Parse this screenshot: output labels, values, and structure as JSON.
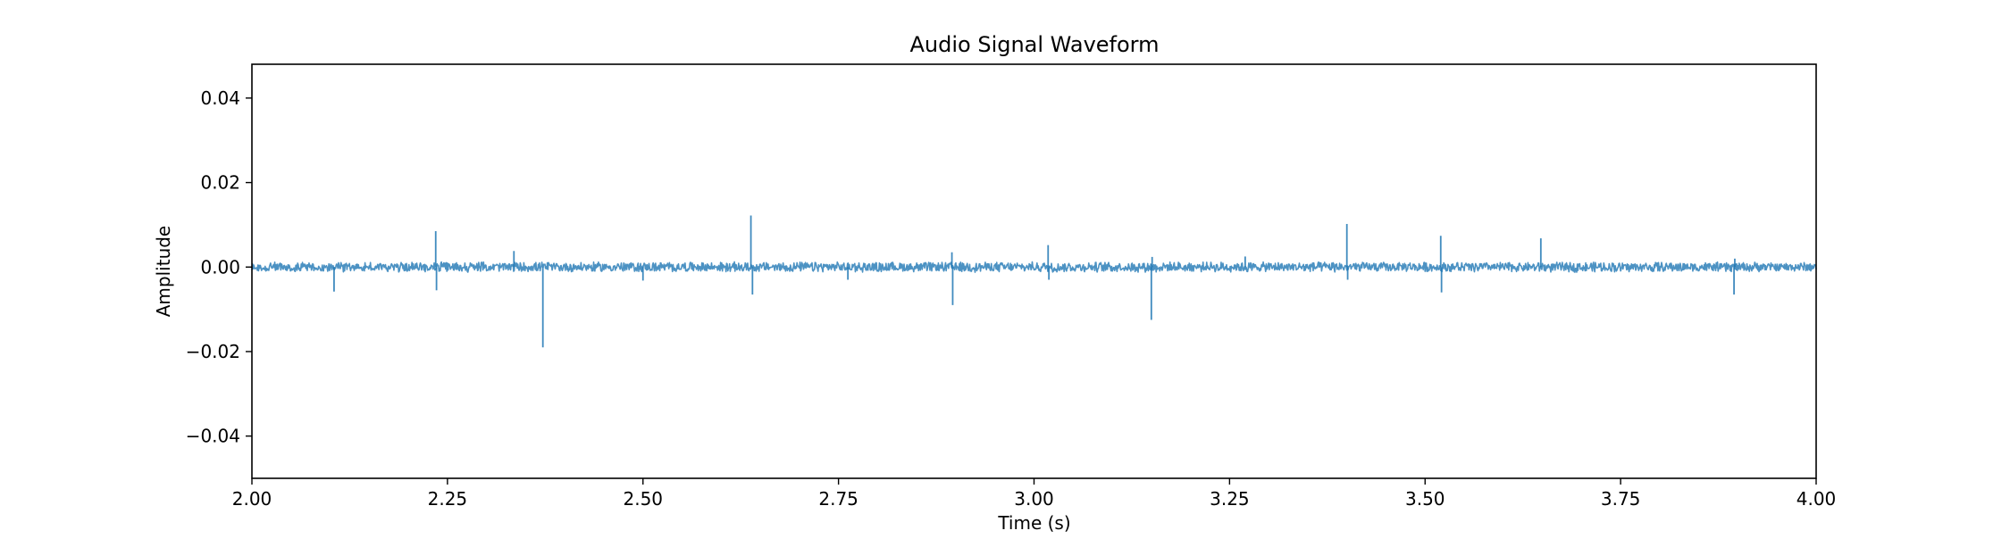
{
  "chart_data": {
    "type": "line",
    "title": "Audio Signal Waveform",
    "xlabel": "Time (s)",
    "ylabel": "Amplitude",
    "xlim": [
      2.0,
      4.0
    ],
    "ylim": [
      -0.05,
      0.048
    ],
    "x_ticks": [
      2.0,
      2.25,
      2.5,
      2.75,
      3.0,
      3.25,
      3.5,
      3.75,
      4.0
    ],
    "x_tick_labels": [
      "2.00",
      "2.25",
      "2.50",
      "2.75",
      "3.00",
      "3.25",
      "3.50",
      "3.75",
      "4.00"
    ],
    "y_ticks": [
      -0.04,
      -0.02,
      0.0,
      0.02,
      0.04
    ],
    "y_tick_labels": [
      "−0.04",
      "−0.02",
      "0.00",
      "0.02",
      "0.04"
    ],
    "grid": false,
    "legend": false,
    "line_color": "#1f77b4",
    "series": [
      {
        "baseline_noise_amplitude": 0.001,
        "spikes": [
          {
            "t": 2.105,
            "v": -0.0058
          },
          {
            "t": 2.235,
            "v": 0.0085
          },
          {
            "t": 2.236,
            "v": -0.0055
          },
          {
            "t": 2.335,
            "v": 0.0038
          },
          {
            "t": 2.372,
            "v": -0.019
          },
          {
            "t": 2.5,
            "v": -0.0032
          },
          {
            "t": 2.638,
            "v": 0.0122
          },
          {
            "t": 2.64,
            "v": -0.0065
          },
          {
            "t": 2.762,
            "v": -0.003
          },
          {
            "t": 2.895,
            "v": 0.0035
          },
          {
            "t": 2.896,
            "v": -0.009
          },
          {
            "t": 3.018,
            "v": 0.0052
          },
          {
            "t": 3.019,
            "v": -0.003
          },
          {
            "t": 3.15,
            "v": -0.0125
          },
          {
            "t": 3.151,
            "v": 0.0024
          },
          {
            "t": 3.27,
            "v": 0.0025
          },
          {
            "t": 3.4,
            "v": 0.0102
          },
          {
            "t": 3.401,
            "v": -0.003
          },
          {
            "t": 3.52,
            "v": 0.0074
          },
          {
            "t": 3.521,
            "v": -0.006
          },
          {
            "t": 3.648,
            "v": 0.0068
          },
          {
            "t": 3.895,
            "v": -0.0065
          },
          {
            "t": 3.896,
            "v": 0.002
          }
        ]
      }
    ]
  }
}
